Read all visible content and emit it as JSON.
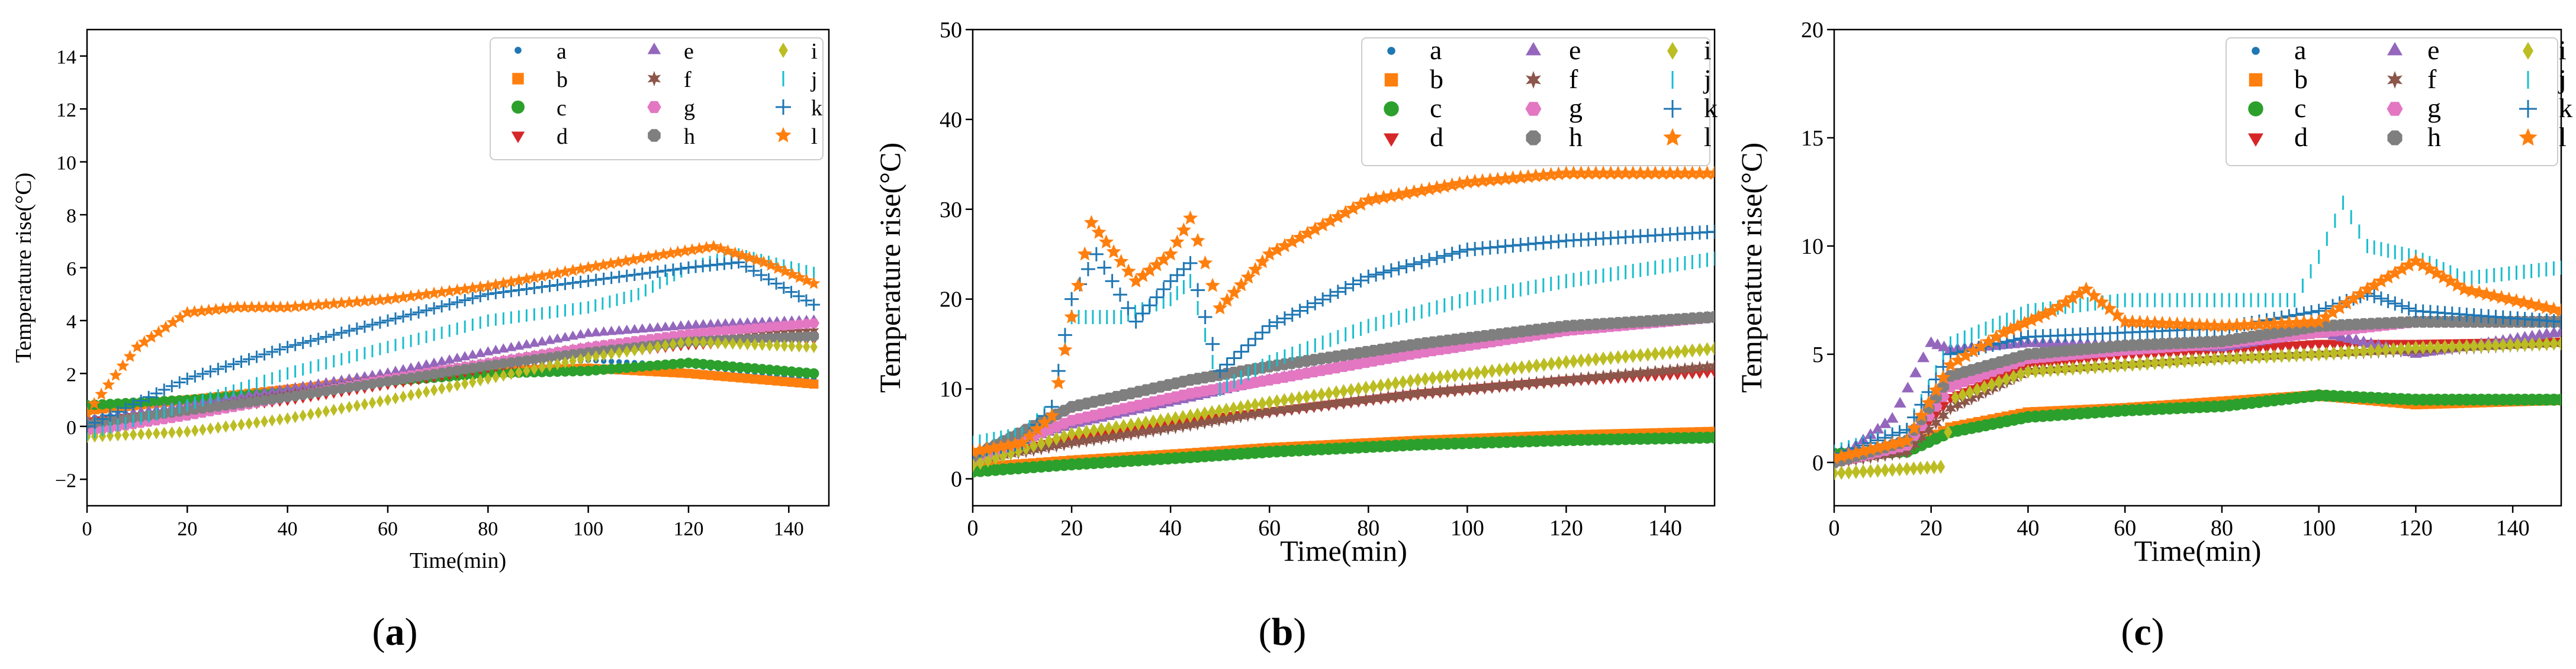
{
  "series_styles": [
    {
      "name": "a",
      "color": "#1f77b4",
      "marker": "dot"
    },
    {
      "name": "b",
      "color": "#ff7f0e",
      "marker": "square"
    },
    {
      "name": "c",
      "color": "#2ca02c",
      "marker": "circle"
    },
    {
      "name": "d",
      "color": "#d62728",
      "marker": "triangle-down"
    },
    {
      "name": "e",
      "color": "#9467bd",
      "marker": "triangle-up"
    },
    {
      "name": "f",
      "color": "#8c564b",
      "marker": "star6"
    },
    {
      "name": "g",
      "color": "#e377c2",
      "marker": "hexagon"
    },
    {
      "name": "h",
      "color": "#7f7f7f",
      "marker": "octagon"
    },
    {
      "name": "i",
      "color": "#bcbd22",
      "marker": "diamond"
    },
    {
      "name": "j",
      "color": "#17becf",
      "marker": "vline"
    },
    {
      "name": "k",
      "color": "#1f77b4",
      "marker": "plus"
    },
    {
      "name": "l",
      "color": "#ff7f0e",
      "marker": "star5"
    }
  ],
  "chart_data": [
    {
      "type": "scatter",
      "panel": "a",
      "caption_open": "(",
      "caption_letter": "a",
      "caption_close": ")",
      "xlabel": "Time(min)",
      "ylabel": "Temperature rise(°C)",
      "xlim": [
        0,
        148
      ],
      "ylim": [
        -3,
        15
      ],
      "xticks": [
        0,
        20,
        40,
        60,
        80,
        100,
        120,
        140
      ],
      "yticks": [
        -2,
        0,
        2,
        4,
        6,
        8,
        10,
        12,
        14
      ],
      "series": [
        {
          "name": "a",
          "x": [
            0,
            20,
            40,
            60,
            80,
            100,
            120,
            145
          ],
          "y": [
            0.3,
            0.8,
            1.3,
            1.7,
            2.1,
            2.5,
            2.3,
            1.8
          ]
        },
        {
          "name": "b",
          "x": [
            0,
            20,
            40,
            60,
            80,
            100,
            120,
            145
          ],
          "y": [
            0.6,
            1.0,
            1.4,
            1.8,
            2.1,
            2.2,
            2.0,
            1.6
          ]
        },
        {
          "name": "c",
          "x": [
            0,
            20,
            40,
            60,
            80,
            100,
            120,
            145
          ],
          "y": [
            0.8,
            1.0,
            1.3,
            1.7,
            2.0,
            2.1,
            2.4,
            2.0
          ]
        },
        {
          "name": "d",
          "x": [
            0,
            20,
            40,
            60,
            80,
            100,
            120,
            145
          ],
          "y": [
            0.2,
            0.6,
            1.0,
            1.6,
            2.2,
            2.7,
            3.1,
            3.3
          ]
        },
        {
          "name": "e",
          "x": [
            0,
            20,
            40,
            60,
            80,
            100,
            120,
            145
          ],
          "y": [
            0.2,
            0.8,
            1.4,
            2.0,
            2.8,
            3.5,
            3.8,
            4.0
          ]
        },
        {
          "name": "f",
          "x": [
            0,
            20,
            40,
            60,
            80,
            100,
            120,
            145
          ],
          "y": [
            0.0,
            0.6,
            1.2,
            1.8,
            2.4,
            3.0,
            3.4,
            3.6
          ]
        },
        {
          "name": "g",
          "x": [
            0,
            20,
            40,
            60,
            80,
            100,
            120,
            145
          ],
          "y": [
            -0.2,
            0.4,
            1.1,
            1.8,
            2.4,
            3.0,
            3.5,
            3.9
          ]
        },
        {
          "name": "h",
          "x": [
            0,
            20,
            40,
            60,
            80,
            100,
            120,
            145
          ],
          "y": [
            0.1,
            0.6,
            1.1,
            1.7,
            2.3,
            2.8,
            3.2,
            3.4
          ]
        },
        {
          "name": "i",
          "x": [
            0,
            20,
            40,
            60,
            80,
            100,
            120,
            145
          ],
          "y": [
            -0.4,
            -0.2,
            0.3,
            1.0,
            1.8,
            2.6,
            3.2,
            3.0
          ]
        },
        {
          "name": "j",
          "x": [
            0,
            20,
            40,
            60,
            80,
            100,
            110,
            120,
            130,
            145
          ],
          "y": [
            -0.3,
            0.8,
            2.0,
            3.0,
            4.0,
            4.5,
            5.0,
            6.0,
            6.5,
            5.8
          ]
        },
        {
          "name": "k",
          "x": [
            0,
            20,
            40,
            60,
            80,
            100,
            120,
            130,
            145
          ],
          "y": [
            0.0,
            1.8,
            3.0,
            4.0,
            5.0,
            5.5,
            6.0,
            6.2,
            4.6
          ]
        },
        {
          "name": "l",
          "x": [
            0,
            10,
            20,
            30,
            40,
            60,
            80,
            100,
            115,
            125,
            135,
            145
          ],
          "y": [
            0.5,
            3.0,
            4.3,
            4.5,
            4.5,
            4.8,
            5.3,
            6.0,
            6.5,
            6.8,
            6.2,
            5.4
          ]
        }
      ]
    },
    {
      "type": "scatter",
      "panel": "b",
      "caption_open": "(",
      "caption_letter": "b",
      "caption_close": ")",
      "xlabel": "Time(min)",
      "ylabel": "Temperature rise(°C)",
      "xlim": [
        0,
        150
      ],
      "ylim": [
        -3,
        50
      ],
      "xticks": [
        0,
        20,
        40,
        60,
        80,
        100,
        120,
        140
      ],
      "yticks": [
        0,
        10,
        20,
        30,
        40,
        50
      ],
      "series": [
        {
          "name": "a",
          "x": [
            0,
            20,
            44,
            60,
            90,
            120,
            150
          ],
          "y": [
            1.0,
            1.8,
            2.6,
            3.2,
            4.0,
            4.6,
            5.0
          ]
        },
        {
          "name": "b",
          "x": [
            0,
            20,
            44,
            60,
            90,
            120,
            150
          ],
          "y": [
            1.2,
            2.0,
            2.8,
            3.4,
            4.2,
            4.8,
            5.2
          ]
        },
        {
          "name": "c",
          "x": [
            0,
            20,
            44,
            60,
            90,
            120,
            150
          ],
          "y": [
            0.8,
            1.6,
            2.4,
            3.0,
            3.8,
            4.3,
            4.6
          ]
        },
        {
          "name": "d",
          "x": [
            0,
            20,
            44,
            60,
            90,
            120,
            150
          ],
          "y": [
            2.0,
            4.5,
            6.5,
            7.5,
            9.5,
            11.0,
            12.0
          ]
        },
        {
          "name": "e",
          "x": [
            0,
            20,
            44,
            60,
            90,
            120,
            150
          ],
          "y": [
            2.5,
            6.0,
            9.0,
            11.0,
            14.0,
            16.5,
            18.0
          ]
        },
        {
          "name": "f",
          "x": [
            0,
            20,
            44,
            60,
            90,
            120,
            150
          ],
          "y": [
            2.0,
            4.0,
            6.0,
            7.5,
            9.5,
            11.0,
            12.5
          ]
        },
        {
          "name": "g",
          "x": [
            0,
            20,
            44,
            60,
            90,
            120,
            150
          ],
          "y": [
            2.0,
            6.5,
            9.5,
            11.0,
            14.0,
            16.5,
            18.0
          ]
        },
        {
          "name": "h",
          "x": [
            0,
            20,
            44,
            60,
            90,
            120,
            150
          ],
          "y": [
            2.5,
            8.0,
            11.0,
            12.5,
            15.0,
            17.0,
            18.0
          ]
        },
        {
          "name": "i",
          "x": [
            0,
            20,
            44,
            60,
            90,
            120,
            150
          ],
          "y": [
            1.5,
            5.0,
            7.0,
            8.5,
            11.0,
            13.0,
            14.5
          ]
        },
        {
          "name": "j",
          "x": [
            0,
            10,
            16,
            20,
            30,
            40,
            44,
            50,
            60,
            80,
            100,
            120,
            150
          ],
          "y": [
            4.0,
            5.0,
            8.0,
            18.0,
            18.0,
            20.0,
            22.0,
            10.0,
            13.0,
            17.0,
            20.0,
            22.0,
            24.5
          ]
        },
        {
          "name": "k",
          "x": [
            0,
            10,
            16,
            20,
            25,
            33,
            40,
            44,
            50,
            60,
            80,
            100,
            120,
            150
          ],
          "y": [
            3.0,
            4.0,
            8.0,
            20.0,
            25.0,
            17.5,
            22.0,
            24.0,
            12.0,
            17.0,
            22.5,
            25.5,
            26.5,
            27.5
          ]
        },
        {
          "name": "l",
          "x": [
            0,
            10,
            16,
            20,
            24,
            33,
            40,
            44,
            50,
            60,
            80,
            100,
            120,
            150
          ],
          "y": [
            3.0,
            4.0,
            7.0,
            18.0,
            28.5,
            22.0,
            25.0,
            29.0,
            19.0,
            25.0,
            31.0,
            33.0,
            34.0,
            34.0
          ]
        }
      ]
    },
    {
      "type": "scatter",
      "panel": "c",
      "caption_open": "(",
      "caption_letter": "c",
      "caption_close": ")",
      "xlabel": "Time(min)",
      "ylabel": "Temperature rise(°C)",
      "xlim": [
        0,
        150
      ],
      "ylim": [
        -2,
        20
      ],
      "xticks": [
        0,
        20,
        40,
        60,
        80,
        100,
        120,
        140
      ],
      "yticks": [
        0,
        5,
        10,
        15,
        20
      ],
      "series": [
        {
          "name": "a",
          "x": [
            0,
            15,
            24,
            40,
            60,
            80,
            100,
            120,
            150
          ],
          "y": [
            0.2,
            0.5,
            1.5,
            2.2,
            2.4,
            2.7,
            3.0,
            2.8,
            3.0
          ]
        },
        {
          "name": "b",
          "x": [
            0,
            15,
            24,
            40,
            60,
            80,
            100,
            120,
            150
          ],
          "y": [
            0.3,
            0.6,
            1.6,
            2.3,
            2.5,
            2.8,
            3.1,
            2.7,
            2.9
          ]
        },
        {
          "name": "c",
          "x": [
            0,
            15,
            24,
            40,
            60,
            80,
            100,
            120,
            150
          ],
          "y": [
            0.4,
            0.5,
            1.4,
            2.1,
            2.4,
            2.6,
            3.1,
            2.9,
            2.9
          ]
        },
        {
          "name": "d",
          "x": [
            0,
            15,
            24,
            40,
            60,
            80,
            100,
            120,
            150
          ],
          "y": [
            0.0,
            0.8,
            3.0,
            4.5,
            5.0,
            5.2,
            5.5,
            5.5,
            5.6
          ]
        },
        {
          "name": "e",
          "x": [
            0,
            12,
            20,
            24,
            40,
            60,
            80,
            100,
            120,
            150
          ],
          "y": [
            0.0,
            2.0,
            5.5,
            5.2,
            5.5,
            5.4,
            5.3,
            6.0,
            5.0,
            6.0
          ]
        },
        {
          "name": "f",
          "x": [
            0,
            15,
            24,
            40,
            60,
            80,
            100,
            120,
            150
          ],
          "y": [
            0.0,
            0.5,
            2.5,
            4.2,
            4.5,
            4.8,
            5.0,
            5.2,
            5.5
          ]
        },
        {
          "name": "g",
          "x": [
            0,
            15,
            24,
            40,
            60,
            80,
            100,
            120,
            150
          ],
          "y": [
            0.0,
            0.8,
            3.5,
            4.8,
            5.2,
            5.5,
            6.0,
            6.5,
            6.5
          ]
        },
        {
          "name": "h",
          "x": [
            0,
            15,
            24,
            40,
            60,
            80,
            100,
            120,
            150
          ],
          "y": [
            0.0,
            1.0,
            4.0,
            5.0,
            5.4,
            5.6,
            6.3,
            6.5,
            6.5
          ]
        },
        {
          "name": "i",
          "x": [
            0,
            15,
            22,
            25,
            40,
            60,
            80,
            100,
            120,
            150
          ],
          "y": [
            -0.5,
            -0.3,
            -0.2,
            3.0,
            4.2,
            4.5,
            4.8,
            5.0,
            5.3,
            5.5
          ]
        },
        {
          "name": "j",
          "x": [
            0,
            15,
            24,
            40,
            60,
            80,
            95,
            100,
            105,
            110,
            120,
            130,
            150
          ],
          "y": [
            0.5,
            1.5,
            5.5,
            7.0,
            7.5,
            7.5,
            7.5,
            9.5,
            12.0,
            10.0,
            9.5,
            8.5,
            9.0
          ]
        },
        {
          "name": "k",
          "x": [
            0,
            15,
            24,
            40,
            60,
            80,
            100,
            110,
            120,
            150
          ],
          "y": [
            0.3,
            1.5,
            5.0,
            5.8,
            6.0,
            6.2,
            7.0,
            7.8,
            7.0,
            6.5
          ]
        },
        {
          "name": "l",
          "x": [
            0,
            15,
            24,
            35,
            45,
            52,
            60,
            80,
            100,
            110,
            120,
            130,
            150
          ],
          "y": [
            0.2,
            1.0,
            4.5,
            6.0,
            7.0,
            8.0,
            6.5,
            6.3,
            6.5,
            8.0,
            9.3,
            8.0,
            7.0
          ]
        }
      ]
    }
  ]
}
